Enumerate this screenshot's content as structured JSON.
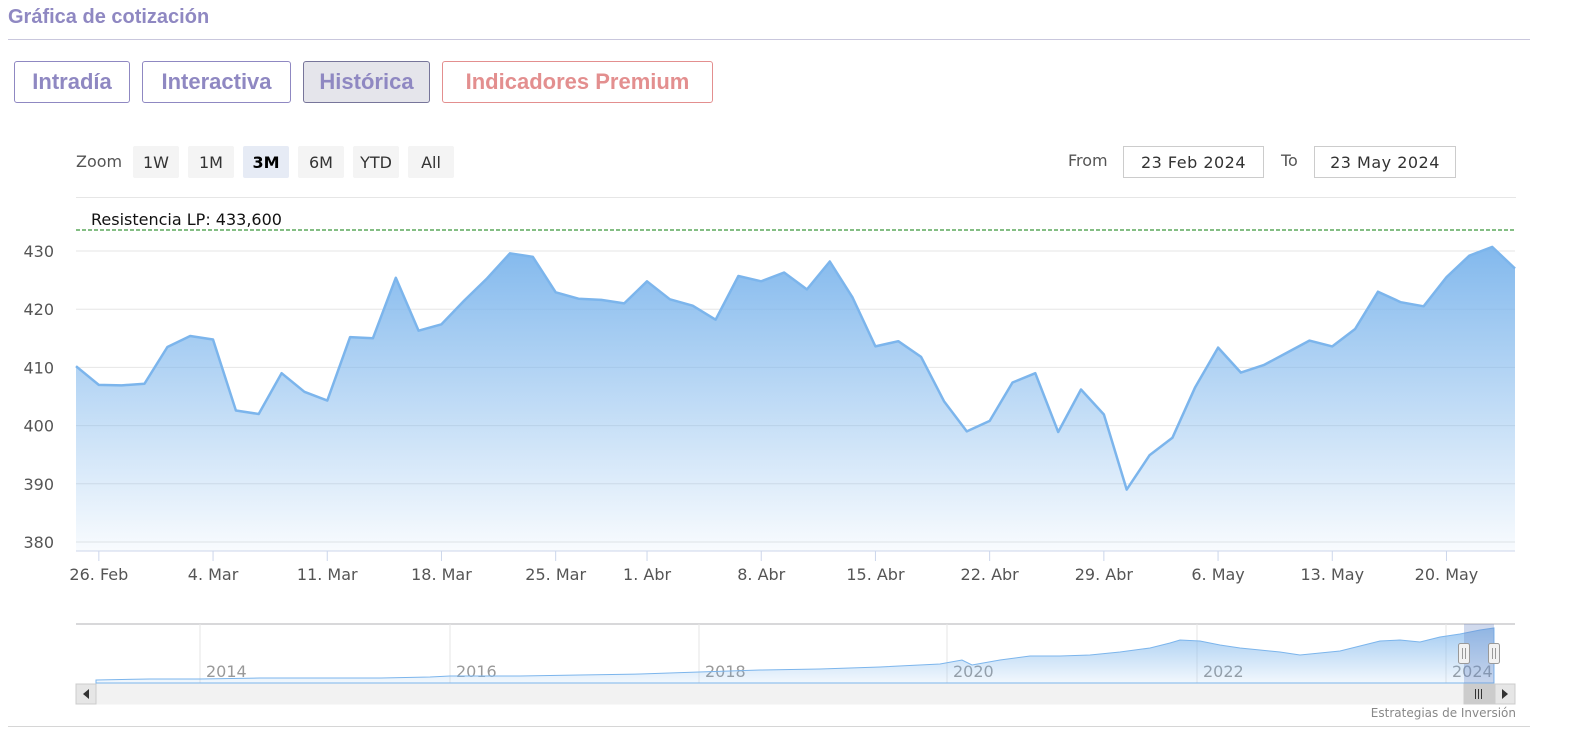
{
  "section_title": "Gráfica de cotización",
  "tabs": [
    {
      "label": "Intradía",
      "active": false
    },
    {
      "label": "Interactiva",
      "active": false
    },
    {
      "label": "Histórica",
      "active": true
    },
    {
      "label": "Indicadores Premium",
      "active": false,
      "premium": true
    }
  ],
  "zoom": {
    "label": "Zoom",
    "buttons": [
      "1W",
      "1M",
      "3M",
      "6M",
      "YTD",
      "All"
    ],
    "selected": "3M"
  },
  "range": {
    "from_label": "From",
    "from_value": "23 Feb 2024",
    "to_label": "To",
    "to_value": "23 May 2024"
  },
  "colors": {
    "accent": "#8f88c2",
    "premium": "#e38f8f",
    "series": "#7cb5ec",
    "resistance": "#0a7d0a"
  },
  "chart_data": {
    "type": "area",
    "y_ticks": [
      "380",
      "390",
      "400",
      "410",
      "420",
      "430"
    ],
    "ylim": [
      380,
      435
    ],
    "x_ticks": [
      {
        "label": "26. Feb",
        "index": 1
      },
      {
        "label": "4. Mar",
        "index": 6
      },
      {
        "label": "11. Mar",
        "index": 11
      },
      {
        "label": "18. Mar",
        "index": 16
      },
      {
        "label": "25. Mar",
        "index": 21
      },
      {
        "label": "1. Abr",
        "index": 25
      },
      {
        "label": "8. Abr",
        "index": 30
      },
      {
        "label": "15. Abr",
        "index": 35
      },
      {
        "label": "22. Abr",
        "index": 40
      },
      {
        "label": "29. Abr",
        "index": 45
      },
      {
        "label": "6. May",
        "index": 50
      },
      {
        "label": "13. May",
        "index": 55
      },
      {
        "label": "20. May",
        "index": 60
      }
    ],
    "series": [
      {
        "values": [
          410.2,
          407.0,
          406.9,
          407.2,
          413.5,
          415.4,
          414.8,
          402.6,
          402.0,
          409.0,
          405.8,
          404.3,
          415.2,
          415.0,
          425.4,
          416.3,
          417.4,
          421.5,
          425.3,
          429.6,
          429.0,
          422.9,
          421.8,
          421.6,
          421.0,
          424.8,
          421.7,
          420.6,
          418.2,
          425.7,
          424.8,
          426.3,
          423.4,
          428.2,
          422.0,
          413.6,
          414.5,
          411.8,
          404.2,
          399.0,
          400.8,
          407.4,
          409.0,
          398.9,
          406.2,
          401.9,
          389.0,
          394.9,
          397.9,
          406.6,
          413.4,
          409.1,
          410.4,
          412.5,
          414.6,
          413.6,
          416.6,
          423.0,
          421.2,
          420.5,
          425.5,
          429.2,
          430.7,
          427.0
        ]
      }
    ],
    "annotations": [
      {
        "label": "Resistencia LP: 433,600",
        "value": 433.6
      }
    ],
    "navigator": {
      "year_labels": [
        "2014",
        "2016",
        "2018",
        "2020",
        "2022",
        "2024"
      ]
    }
  },
  "credit": "Estrategias de Inversión"
}
